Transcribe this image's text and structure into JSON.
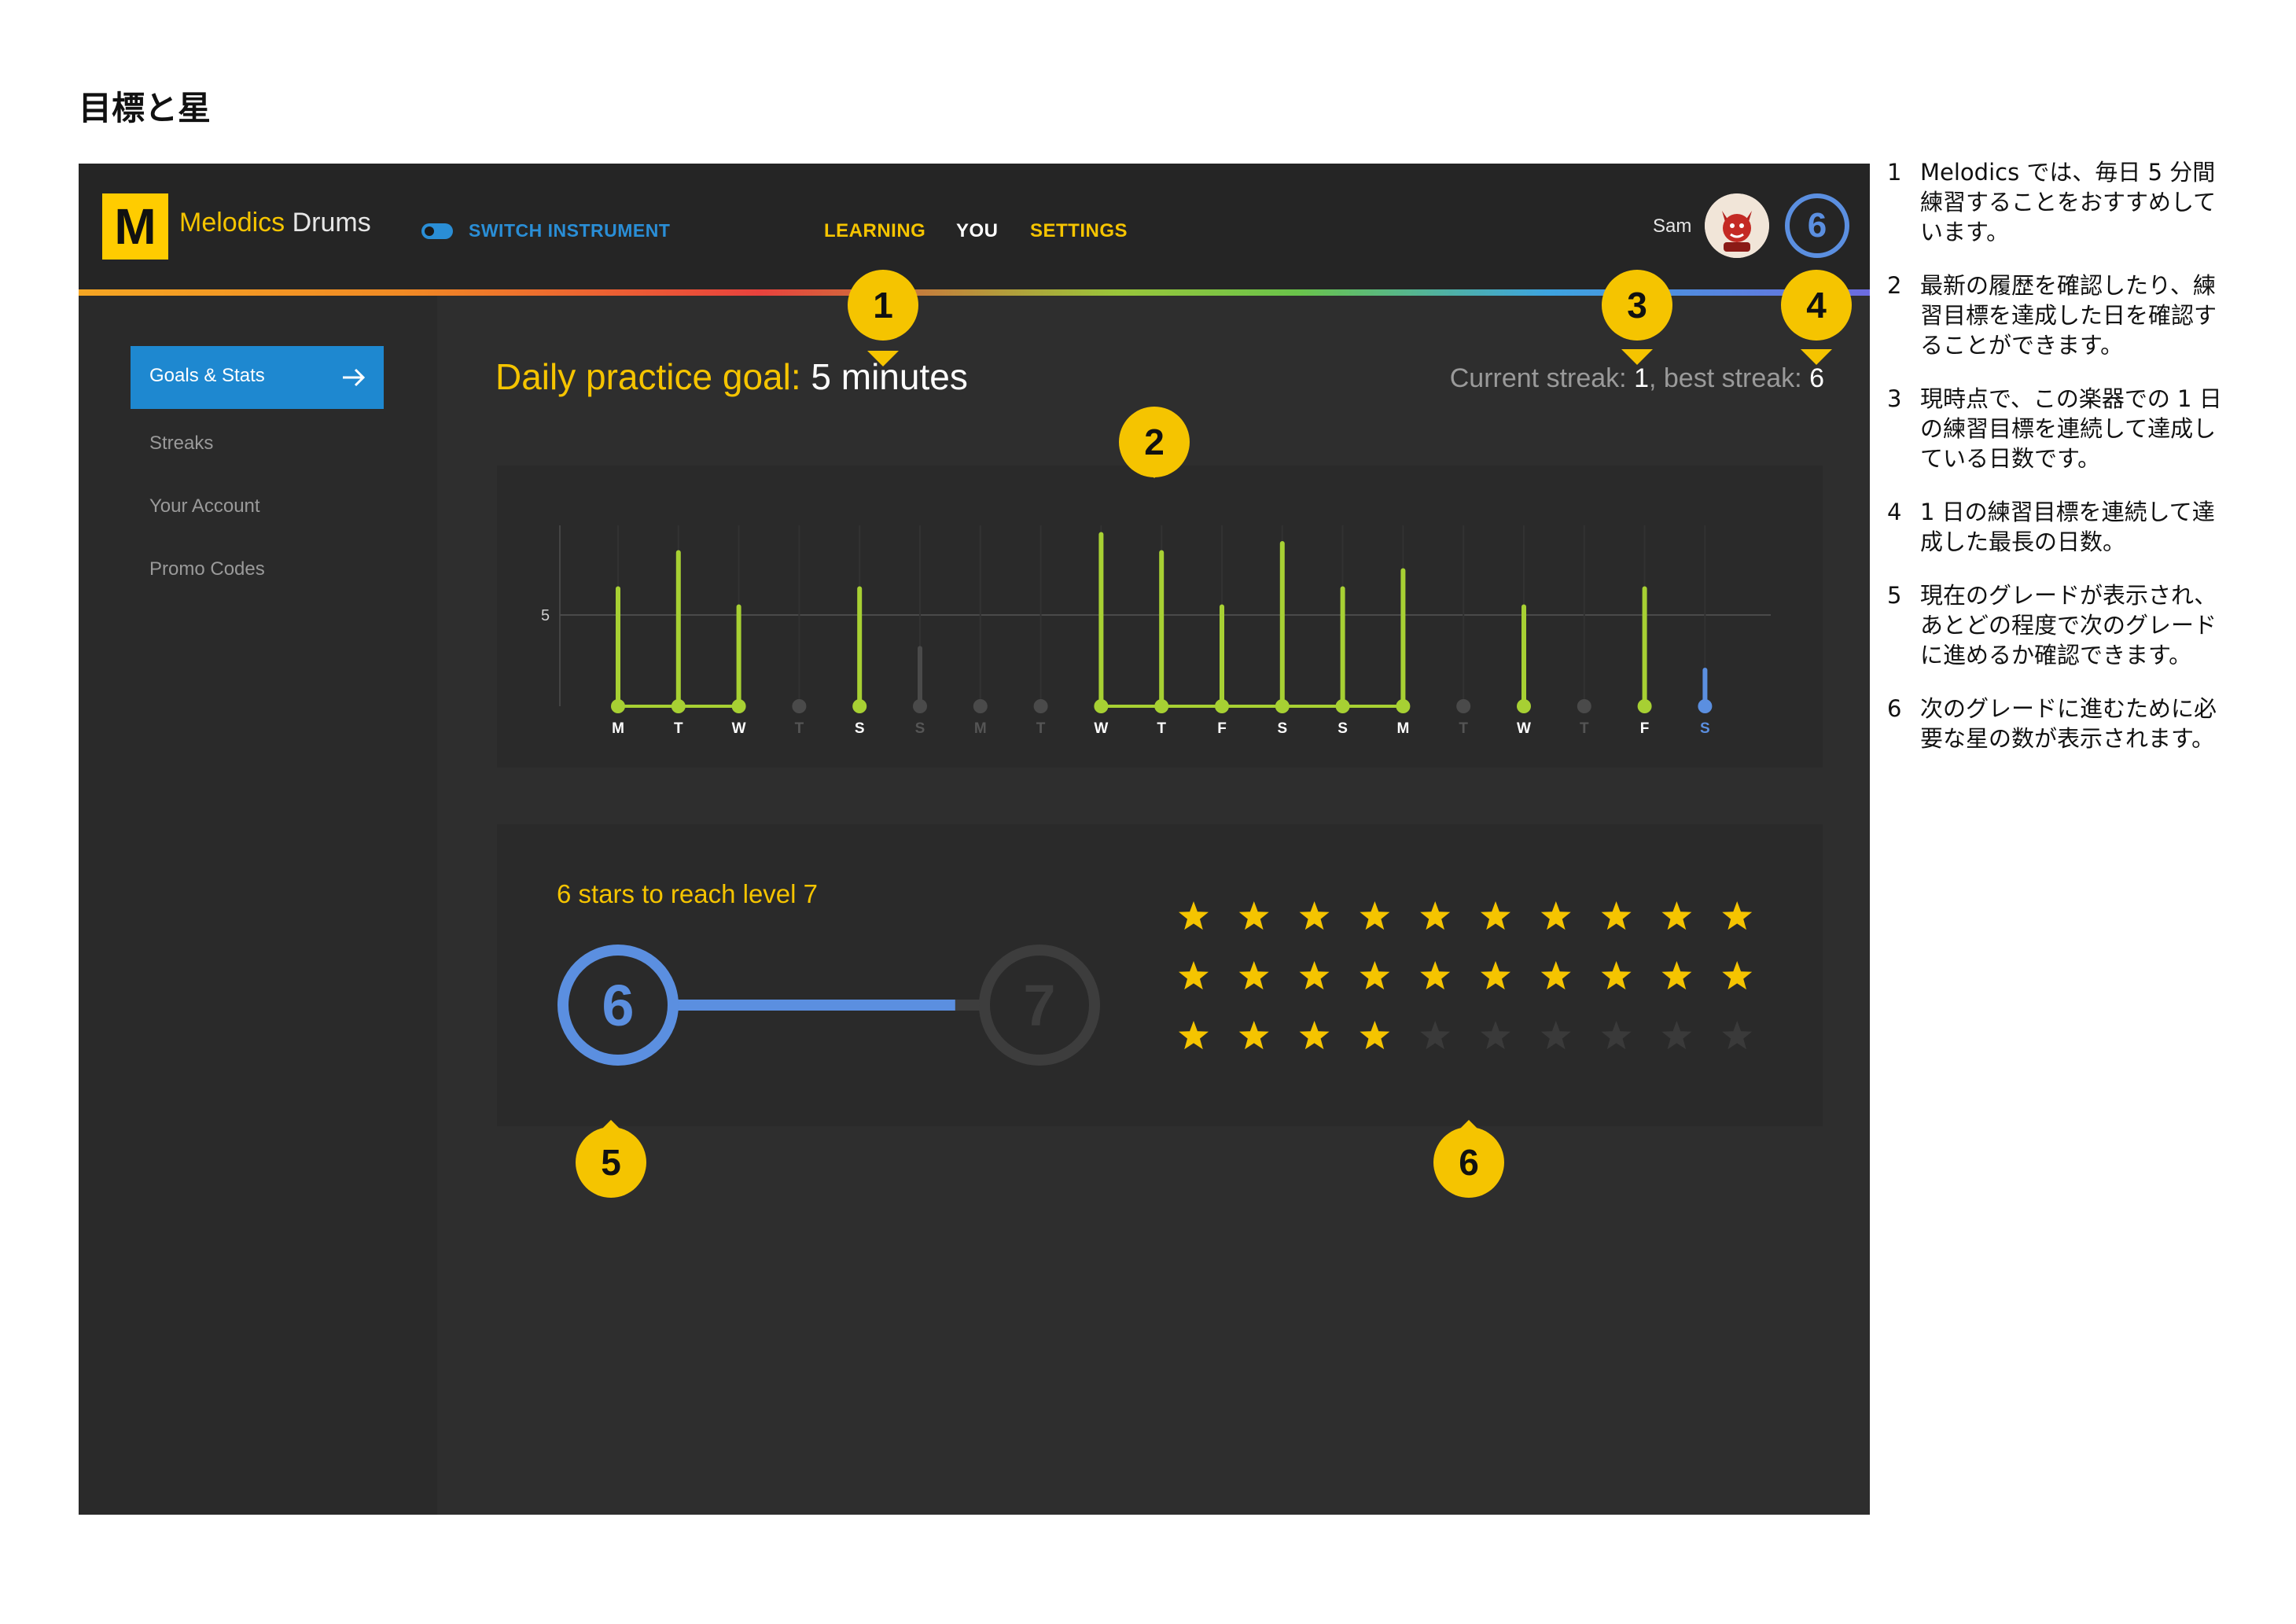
{
  "page_heading": "目標と星",
  "topbar": {
    "logo_letter": "M",
    "brand_primary": "Melodics",
    "brand_secondary": "Drums",
    "switch_label": "SWITCH INSTRUMENT",
    "nav": {
      "learning": "LEARNING",
      "you": "YOU",
      "settings": "SETTINGS"
    },
    "user_name": "Sam",
    "user_level": "6"
  },
  "sidebar": {
    "items": [
      {
        "label": "Goals & Stats",
        "active": true
      },
      {
        "label": "Streaks"
      },
      {
        "label": "Your Account"
      },
      {
        "label": "Promo Codes"
      }
    ]
  },
  "goal": {
    "label": "Daily practice goal:",
    "value": "5 minutes"
  },
  "streak": {
    "current_label": "Current streak:",
    "current": "1",
    "best_label": ", best streak:",
    "best": "6"
  },
  "chart_data": {
    "type": "bar",
    "categories": [
      "M",
      "T",
      "W",
      "T",
      "S",
      "S",
      "M",
      "T",
      "W",
      "T",
      "F",
      "S",
      "S",
      "M",
      "T",
      "W",
      "T",
      "F",
      "S"
    ],
    "values": [
      6.5,
      8.5,
      5.5,
      0,
      6.5,
      3.2,
      0,
      0,
      9.5,
      8.5,
      5.5,
      9,
      6.5,
      7.5,
      0,
      5.5,
      0,
      6.5,
      2
    ],
    "status": [
      "met",
      "met",
      "met",
      "missed",
      "met",
      "below",
      "missed",
      "missed",
      "met",
      "met",
      "met",
      "met",
      "met",
      "met",
      "missed",
      "met",
      "missed",
      "met",
      "today"
    ],
    "ytick": "5",
    "goal_line": 5,
    "ylim": [
      0,
      10
    ]
  },
  "progress": {
    "title": "6 stars to reach level 7",
    "current_level": "6",
    "next_level": "7",
    "fraction": 0.8,
    "stars_earned": 24,
    "stars_total": 30
  },
  "markers": [
    "1",
    "2",
    "3",
    "4",
    "5",
    "6"
  ],
  "notes": [
    {
      "n": "1",
      "text": "Melodics では、毎日 5 分間練習することをおすすめしています。"
    },
    {
      "n": "2",
      "text": "最新の履歴を確認したり、練習目標を達成した日を確認することができます。"
    },
    {
      "n": "3",
      "text": "現時点で、この楽器での 1 日の練習目標を連続して達成している日数です。"
    },
    {
      "n": "4",
      "text": "1 日の練習目標を連続して達成した最長の日数。"
    },
    {
      "n": "5",
      "text": "現在のグレードが表示され、あとどの程度で次のグレードに進めるか確認できます。"
    },
    {
      "n": "6",
      "text": "次のグレードに進むために必要な星の数が表示されます。"
    }
  ],
  "colors": {
    "accent_yellow": "#f5c400",
    "met_green": "#a7d033",
    "today_blue": "#5b8fe0",
    "active_blue": "#1e88d0"
  }
}
